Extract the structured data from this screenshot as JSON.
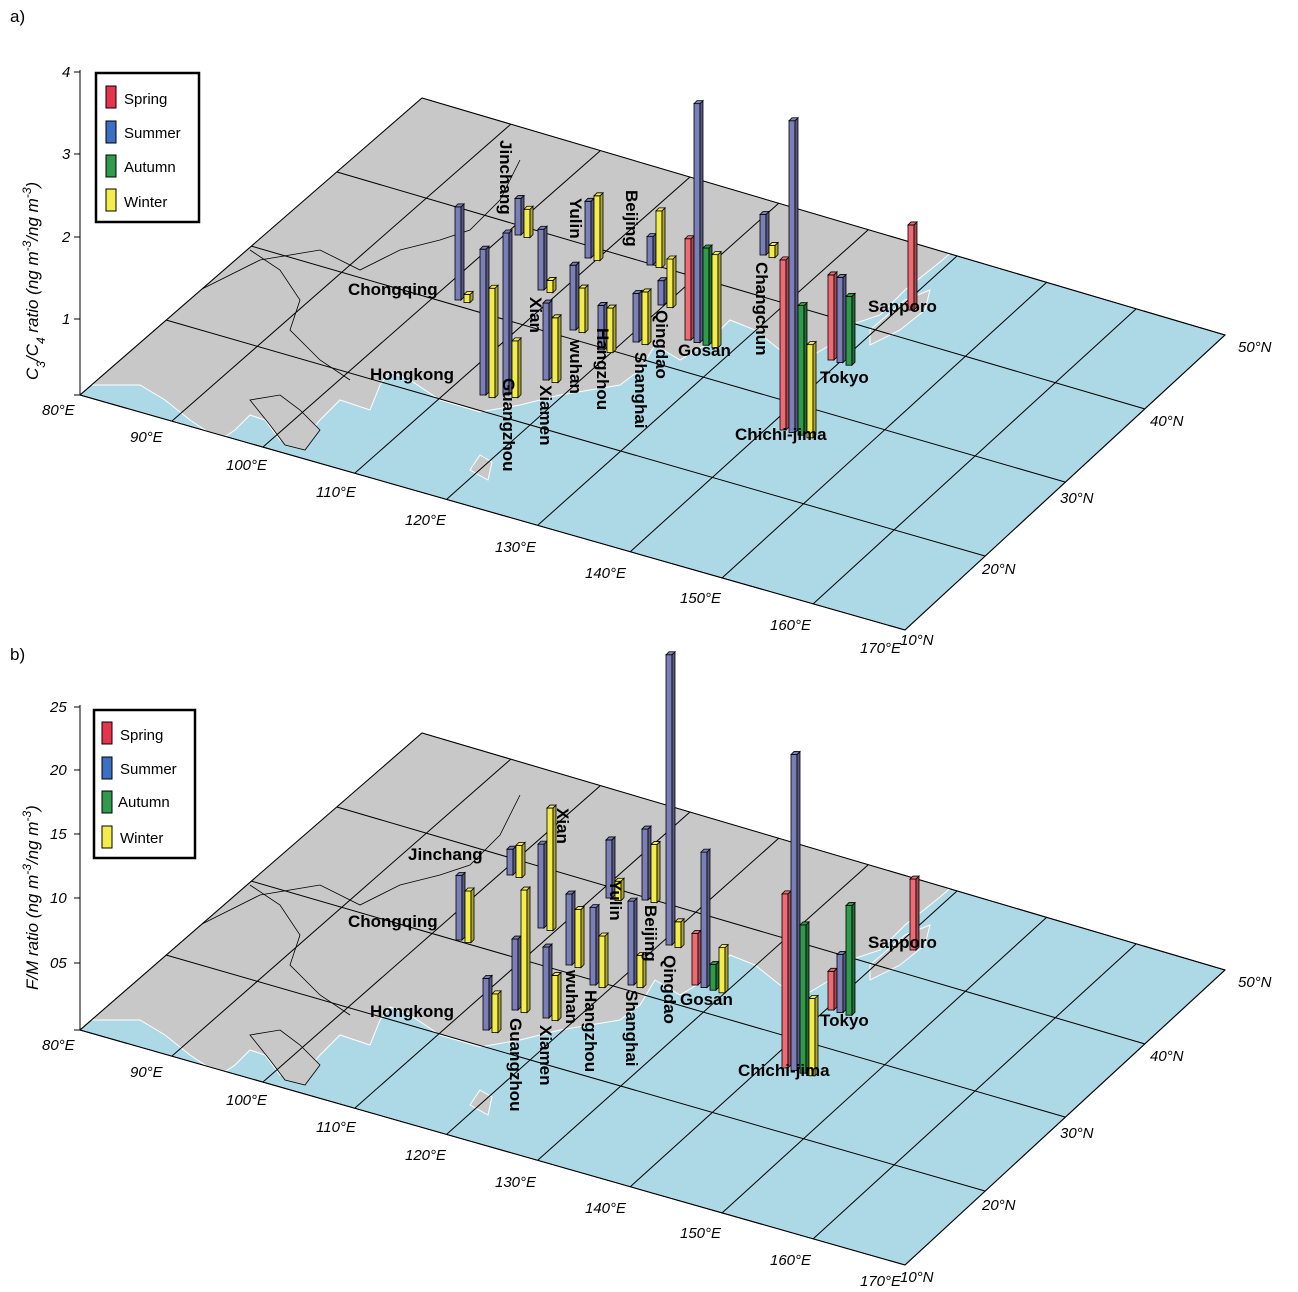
{
  "figure": {
    "panel_a_label": "a)",
    "panel_b_label": "b)"
  },
  "colors": {
    "Spring": "#f06a73",
    "Summer": "#7b7fb8",
    "Autumn": "#2e9a4a",
    "Winter": "#f4ec4a",
    "land": "#c8c8c8",
    "ocean": "#add8e6"
  },
  "chart_data": [
    {
      "type": "bar",
      "panel": "a)",
      "title": "",
      "ylabel_main": "C",
      "ylabel_sub1": "3",
      "ylabel_mid": "/C",
      "ylabel_sub2": "4",
      "ylabel_rest": " ratio (ng m",
      "ylabel_exp": "-3",
      "ylabel_rest2": "/ng m",
      "ylabel_exp2": "-3",
      "ylabel_end": ")",
      "ylim": [
        0,
        4
      ],
      "yticks": [
        "1",
        "2",
        "3",
        "4"
      ],
      "lon_ticks": [
        "80°E",
        "90°E",
        "100°E",
        "110°E",
        "120°E",
        "130°E",
        "140°E",
        "150°E",
        "160°E",
        "170°E"
      ],
      "lat_ticks": [
        "10°N",
        "20°N",
        "30°N",
        "40°N",
        "50°N"
      ],
      "legend": [
        "Spring",
        "Summer",
        "Autumn",
        "Winter"
      ],
      "stations": [
        {
          "name": "Chongqing",
          "series": {
            "Summer": 1.15,
            "Winter": 0.1
          }
        },
        {
          "name": "Jinchang",
          "series": {
            "Summer": 0.45,
            "Winter": 0.35
          }
        },
        {
          "name": "Xian",
          "series": {
            "Summer": 0.75,
            "Winter": 0.15
          }
        },
        {
          "name": "Yulin",
          "series": {
            "Summer": 0.7,
            "Winter": 0.8
          }
        },
        {
          "name": "Beijing",
          "series": {
            "Summer": 0.35,
            "Winter": 0.7
          }
        },
        {
          "name": "Hongkong",
          "series": {
            "Summer": 1.8,
            "Winter": 1.35
          }
        },
        {
          "name": "Guangzhou",
          "series": {
            "Summer": 2.0,
            "Winter": 0.7
          }
        },
        {
          "name": "Xiamen",
          "series": {
            "Summer": 0.95,
            "Winter": 0.8
          }
        },
        {
          "name": "wuhan",
          "series": {
            "Summer": 0.8,
            "Winter": 0.55
          }
        },
        {
          "name": "Hangzhou",
          "series": {
            "Summer": 0.55,
            "Winter": 0.55
          }
        },
        {
          "name": "Shanghai",
          "series": {
            "Summer": 0.6,
            "Winter": 0.65
          }
        },
        {
          "name": "Qingdao",
          "series": {
            "Summer": 0.3,
            "Winter": 0.6
          }
        },
        {
          "name": "Gosan",
          "series": {
            "Spring": 1.25,
            "Summer": 2.95,
            "Autumn": 1.2,
            "Winter": 1.15
          }
        },
        {
          "name": "Changchun",
          "series": {
            "Summer": 0.5,
            "Winter": 0.15
          }
        },
        {
          "name": "Chichi-jima",
          "series": {
            "Spring": 2.1,
            "Summer": 3.85,
            "Autumn": 1.6,
            "Winter": 1.15
          }
        },
        {
          "name": "Tokyo",
          "series": {
            "Spring": 1.05,
            "Summer": 1.05,
            "Autumn": 0.85
          }
        },
        {
          "name": "Sapporo",
          "series": {
            "Spring": 1.05
          }
        }
      ]
    },
    {
      "type": "bar",
      "panel": "b)",
      "title": "",
      "ylabel_main": "F/M ratio (ng m",
      "ylabel_exp": "-3",
      "ylabel_rest": "/ng m",
      "ylabel_exp2": "-3",
      "ylabel_end": ")",
      "ylim": [
        0,
        25
      ],
      "yticks": [
        "05",
        "10",
        "15",
        "20",
        "25"
      ],
      "lon_ticks": [
        "80°E",
        "90°E",
        "100°E",
        "110°E",
        "120°E",
        "130°E",
        "140°E",
        "150°E",
        "160°E",
        "170°E"
      ],
      "lat_ticks": [
        "10°N",
        "20°N",
        "30°N",
        "40°N",
        "50°N"
      ],
      "legend": [
        "Spring",
        "Summer",
        "Autumn",
        "Winter"
      ],
      "stations": [
        {
          "name": "Jinchang",
          "series": {
            "Summer": 2.0,
            "Winter": 2.5
          }
        },
        {
          "name": "Chongqing",
          "series": {
            "Summer": 5.0,
            "Winter": 4.0
          }
        },
        {
          "name": "Xian",
          "series": {
            "Summer": 6.5,
            "Winter": 9.5
          }
        },
        {
          "name": "Yulin",
          "series": {
            "Summer": 4.5,
            "Winter": 1.5
          }
        },
        {
          "name": "Beijing",
          "series": {
            "Summer": 5.5,
            "Winter": 4.5
          }
        },
        {
          "name": "Hongkong",
          "series": {
            "Summer": 4.0,
            "Winter": 3.0
          }
        },
        {
          "name": "Guangzhou",
          "series": {
            "Summer": 5.5,
            "Winter": 9.5
          }
        },
        {
          "name": "Xiamen",
          "series": {
            "Summer": 5.5,
            "Winter": 3.5
          }
        },
        {
          "name": "wuhan",
          "series": {
            "Summer": 5.5,
            "Winter": 4.5
          }
        },
        {
          "name": "Hangzhou",
          "series": {
            "Summer": 6.0,
            "Winter": 4.0
          }
        },
        {
          "name": "Shanghai",
          "series": {
            "Summer": 6.5,
            "Winter": 2.5
          }
        },
        {
          "name": "Qingdao",
          "series": {
            "Summer": 22.5,
            "Winter": 2.0
          }
        },
        {
          "name": "Gosan",
          "series": {
            "Spring": 4.0,
            "Summer": 10.5,
            "Autumn": 2.0,
            "Winter": 3.5
          }
        },
        {
          "name": "Chichi-jima",
          "series": {
            "Spring": 13.5,
            "Summer": 24.5,
            "Autumn": 11.5,
            "Winter": 6.0
          }
        },
        {
          "name": "Tokyo",
          "series": {
            "Spring": 3.0,
            "Summer": 4.5,
            "Autumn": 8.5
          }
        },
        {
          "name": "Sapporo",
          "series": {
            "Spring": 5.5
          }
        }
      ]
    }
  ]
}
